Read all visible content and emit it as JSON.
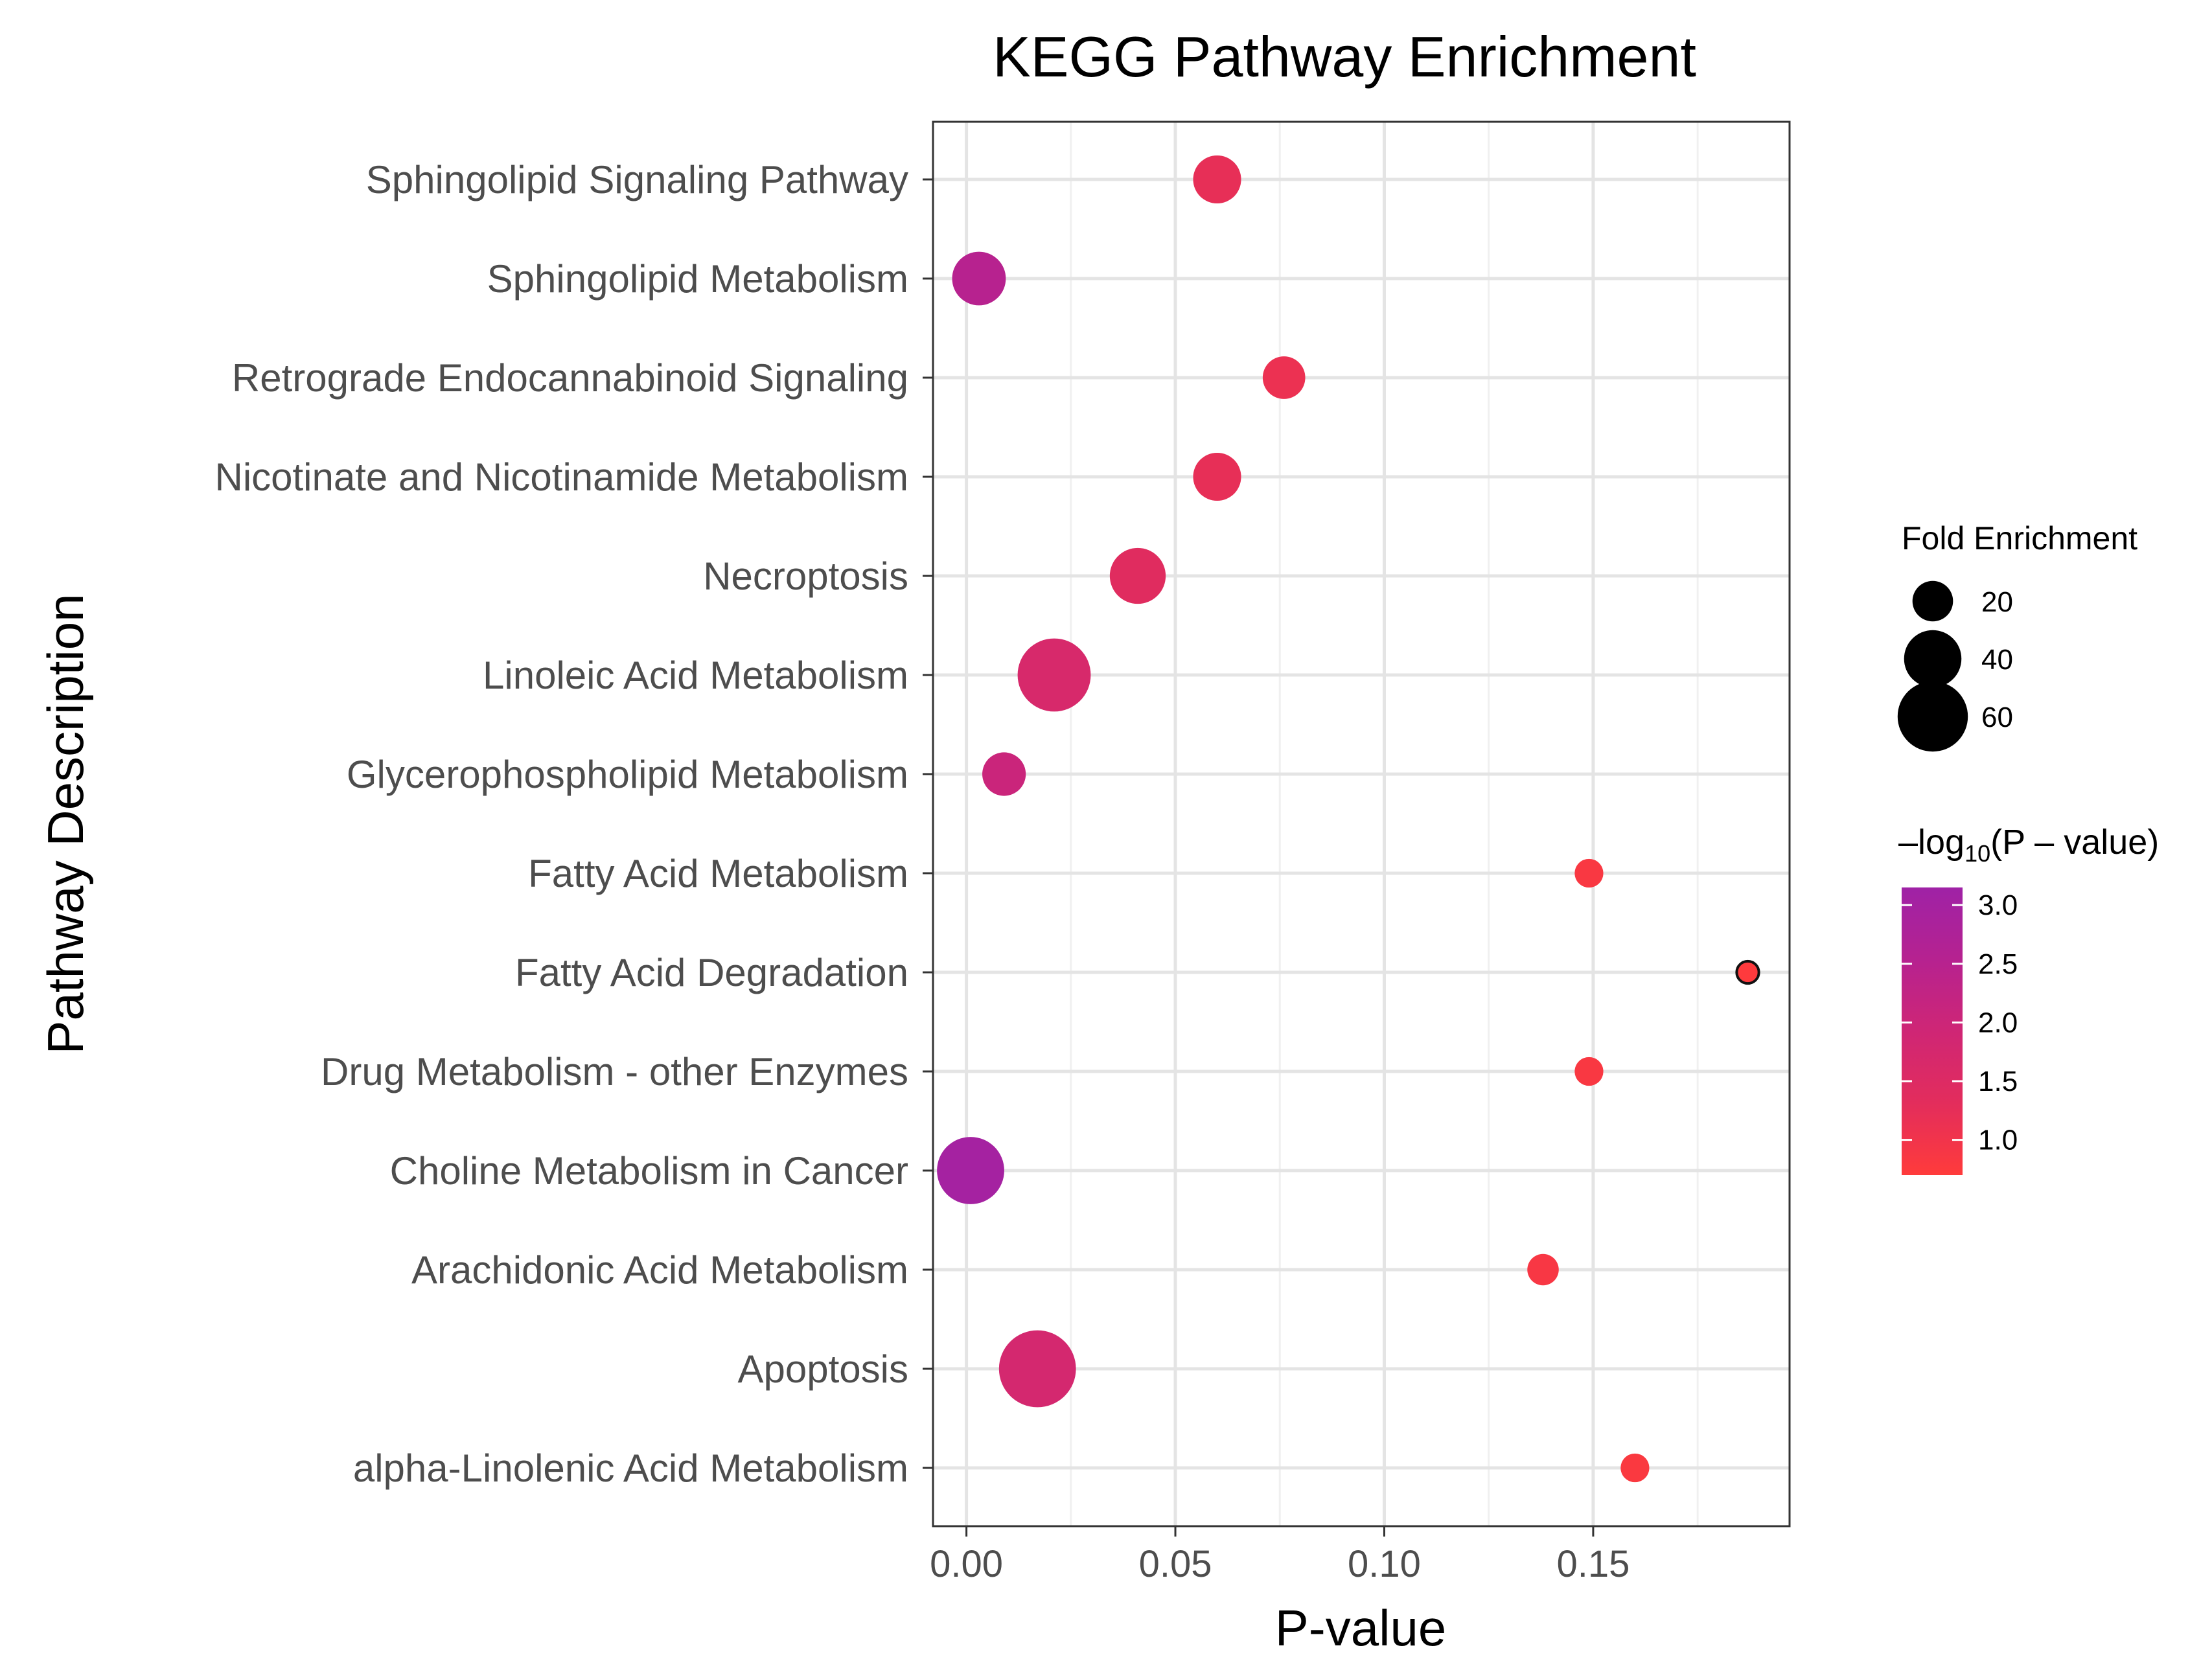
{
  "chart_data": {
    "type": "scatter",
    "title": "KEGG Pathway Enrichment",
    "xlabel": "P-value",
    "ylabel": "Pathway Description",
    "xlim": [
      -0.008,
      0.197
    ],
    "xticks": [
      0.0,
      0.05,
      0.1,
      0.15
    ],
    "xtick_labels": [
      "0.00",
      "0.05",
      "0.10",
      "0.15"
    ],
    "grid": true,
    "legend_position": "right",
    "size_legend": {
      "title": "Fold Enrichment",
      "entries": [
        {
          "label": "20",
          "value": 20
        },
        {
          "label": "40",
          "value": 40
        },
        {
          "label": "60",
          "value": 60
        }
      ]
    },
    "color_legend": {
      "title_prefix": "–log",
      "title_sub": "10",
      "title_suffix": "(P – value)",
      "range": [
        0.7,
        3.15
      ],
      "ticks": [
        {
          "label": "3.0",
          "value": 3.0
        },
        {
          "label": "2.5",
          "value": 2.5
        },
        {
          "label": "2.0",
          "value": 2.0
        },
        {
          "label": "1.5",
          "value": 1.5
        },
        {
          "label": "1.0",
          "value": 1.0
        }
      ],
      "colors": [
        "#ff3b3b",
        "#e32d5c",
        "#cf2675",
        "#b62290",
        "#9f22a6"
      ]
    },
    "categories": [
      "Sphingolipid Signaling Pathway",
      "Sphingolipid Metabolism",
      "Retrograde Endocannabinoid Signaling",
      "Nicotinate and Nicotinamide Metabolism",
      "Necroptosis",
      "Linoleic Acid Metabolism",
      "Glycerophospholipid Metabolism",
      "Fatty Acid Metabolism",
      "Fatty Acid Degradation",
      "Drug Metabolism - other Enzymes",
      "Choline Metabolism in Cancer",
      "Arachidonic Acid Metabolism",
      "Apoptosis",
      "alpha-Linolenic Acid Metabolism"
    ],
    "points": [
      {
        "pathway": "Sphingolipid Signaling Pathway",
        "p_value": 0.06,
        "fold_enrichment": 28,
        "neg_log10_p": 1.22
      },
      {
        "pathway": "Sphingolipid Metabolism",
        "p_value": 0.003,
        "fold_enrichment": 35,
        "neg_log10_p": 2.52
      },
      {
        "pathway": "Retrograde Endocannabinoid Signaling",
        "p_value": 0.076,
        "fold_enrichment": 22,
        "neg_log10_p": 1.12
      },
      {
        "pathway": "Nicotinate and Nicotinamide Metabolism",
        "p_value": 0.06,
        "fold_enrichment": 28,
        "neg_log10_p": 1.22
      },
      {
        "pathway": "Necroptosis",
        "p_value": 0.041,
        "fold_enrichment": 38,
        "neg_log10_p": 1.39
      },
      {
        "pathway": "Linoleic Acid Metabolism",
        "p_value": 0.021,
        "fold_enrichment": 65,
        "neg_log10_p": 1.68
      },
      {
        "pathway": "Glycerophospholipid Metabolism",
        "p_value": 0.009,
        "fold_enrichment": 23,
        "neg_log10_p": 2.05
      },
      {
        "pathway": "Fatty Acid Metabolism",
        "p_value": 0.149,
        "fold_enrichment": 10,
        "neg_log10_p": 0.83
      },
      {
        "pathway": "Fatty Acid Degradation",
        "p_value": 0.187,
        "fold_enrichment": 6,
        "neg_log10_p": 0.73
      },
      {
        "pathway": "Drug Metabolism - other Enzymes",
        "p_value": 0.149,
        "fold_enrichment": 10,
        "neg_log10_p": 0.83
      },
      {
        "pathway": "Choline Metabolism in Cancer",
        "p_value": 0.001,
        "fold_enrichment": 55,
        "neg_log10_p": 3.0
      },
      {
        "pathway": "Arachidonic Acid Metabolism",
        "p_value": 0.138,
        "fold_enrichment": 12,
        "neg_log10_p": 0.86
      },
      {
        "pathway": "Apoptosis",
        "p_value": 0.017,
        "fold_enrichment": 72,
        "neg_log10_p": 1.77
      },
      {
        "pathway": "alpha-Linolenic Acid Metabolism",
        "p_value": 0.16,
        "fold_enrichment": 10,
        "neg_log10_p": 0.8
      }
    ]
  }
}
